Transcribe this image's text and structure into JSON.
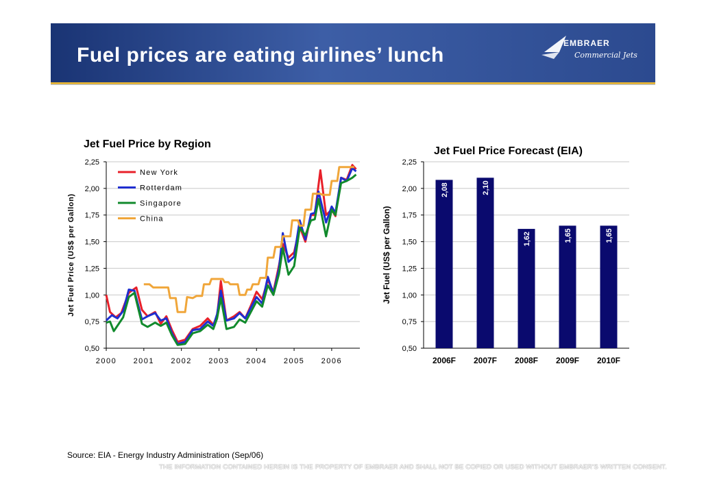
{
  "slide": {
    "title": "Fuel prices are eating airlines’ lunch",
    "logo_name": "EMBRAER",
    "logo_sub": "Commercial Jets",
    "source": "Source: EIA - Energy Industry Administration (Sep/06)",
    "disclaimer": "THE INFORMATION CONTAINED HEREIN IS THE PROPERTY OF EMBRAER AND SHALL NOT BE COPIED OR USED WITHOUT EMBRAER’S WRITTEN CONSENT.",
    "colors": {
      "banner": "#2c4a8f",
      "stripe": "#e2b33a"
    }
  },
  "chart_data": [
    {
      "type": "line",
      "title": "Jet Fuel Price by Region",
      "ylabel": "Jet Fuel Price (US$ per Gallon)",
      "xlabel": "",
      "ylim": [
        0.5,
        2.25
      ],
      "y_ticks": [
        "0,50",
        "0,75",
        "1,00",
        "1,25",
        "1,50",
        "1,75",
        "2,00",
        "2,25"
      ],
      "x_ticks": [
        "2000",
        "2001",
        "2002",
        "2003",
        "2004",
        "2005",
        "2006"
      ],
      "xlim": [
        2000,
        2006.75
      ],
      "legend_position": "top-left",
      "grid": true,
      "series": [
        {
          "name": "New York",
          "color": "#e8202a",
          "points": [
            [
              2000.0,
              1.0
            ],
            [
              2000.1,
              0.84
            ],
            [
              2000.25,
              0.79
            ],
            [
              2000.4,
              0.83
            ],
            [
              2000.6,
              1.02
            ],
            [
              2000.8,
              1.07
            ],
            [
              2000.95,
              0.86
            ],
            [
              2001.1,
              0.8
            ],
            [
              2001.3,
              0.84
            ],
            [
              2001.45,
              0.73
            ],
            [
              2001.6,
              0.8
            ],
            [
              2001.75,
              0.67
            ],
            [
              2001.9,
              0.56
            ],
            [
              2002.1,
              0.58
            ],
            [
              2002.3,
              0.68
            ],
            [
              2002.5,
              0.71
            ],
            [
              2002.7,
              0.78
            ],
            [
              2002.85,
              0.72
            ],
            [
              2002.95,
              0.8
            ],
            [
              2003.05,
              1.13
            ],
            [
              2003.2,
              0.76
            ],
            [
              2003.4,
              0.8
            ],
            [
              2003.55,
              0.84
            ],
            [
              2003.7,
              0.78
            ],
            [
              2003.85,
              0.9
            ],
            [
              2004.0,
              1.03
            ],
            [
              2004.15,
              0.96
            ],
            [
              2004.3,
              1.14
            ],
            [
              2004.45,
              1.03
            ],
            [
              2004.6,
              1.28
            ],
            [
              2004.7,
              1.48
            ],
            [
              2004.85,
              1.35
            ],
            [
              2005.0,
              1.4
            ],
            [
              2005.15,
              1.64
            ],
            [
              2005.3,
              1.5
            ],
            [
              2005.45,
              1.75
            ],
            [
              2005.55,
              1.75
            ],
            [
              2005.7,
              2.17
            ],
            [
              2005.85,
              1.75
            ],
            [
              2006.0,
              1.8
            ],
            [
              2006.1,
              1.74
            ],
            [
              2006.25,
              2.1
            ],
            [
              2006.4,
              2.08
            ],
            [
              2006.55,
              2.22
            ],
            [
              2006.65,
              2.18
            ]
          ]
        },
        {
          "name": "Rotterdam",
          "color": "#1f2ed0",
          "points": [
            [
              2000.0,
              0.76
            ],
            [
              2000.15,
              0.81
            ],
            [
              2000.3,
              0.78
            ],
            [
              2000.45,
              0.85
            ],
            [
              2000.6,
              1.05
            ],
            [
              2000.75,
              1.04
            ],
            [
              2000.95,
              0.77
            ],
            [
              2001.1,
              0.8
            ],
            [
              2001.3,
              0.83
            ],
            [
              2001.45,
              0.76
            ],
            [
              2001.6,
              0.78
            ],
            [
              2001.75,
              0.64
            ],
            [
              2001.9,
              0.54
            ],
            [
              2002.1,
              0.56
            ],
            [
              2002.3,
              0.67
            ],
            [
              2002.5,
              0.68
            ],
            [
              2002.7,
              0.75
            ],
            [
              2002.85,
              0.71
            ],
            [
              2002.95,
              0.82
            ],
            [
              2003.05,
              1.04
            ],
            [
              2003.2,
              0.76
            ],
            [
              2003.4,
              0.78
            ],
            [
              2003.55,
              0.83
            ],
            [
              2003.7,
              0.78
            ],
            [
              2003.85,
              0.88
            ],
            [
              2004.0,
              0.98
            ],
            [
              2004.15,
              0.92
            ],
            [
              2004.3,
              1.17
            ],
            [
              2004.45,
              1.01
            ],
            [
              2004.6,
              1.25
            ],
            [
              2004.7,
              1.58
            ],
            [
              2004.85,
              1.31
            ],
            [
              2005.0,
              1.36
            ],
            [
              2005.15,
              1.7
            ],
            [
              2005.3,
              1.52
            ],
            [
              2005.45,
              1.76
            ],
            [
              2005.55,
              1.77
            ],
            [
              2005.65,
              1.97
            ],
            [
              2005.85,
              1.68
            ],
            [
              2006.0,
              1.83
            ],
            [
              2006.1,
              1.77
            ],
            [
              2006.25,
              2.1
            ],
            [
              2006.4,
              2.07
            ],
            [
              2006.55,
              2.19
            ],
            [
              2006.65,
              2.16
            ]
          ]
        },
        {
          "name": "Singapore",
          "color": "#118a2c",
          "points": [
            [
              2000.0,
              0.74
            ],
            [
              2000.1,
              0.75
            ],
            [
              2000.2,
              0.66
            ],
            [
              2000.45,
              0.79
            ],
            [
              2000.6,
              0.98
            ],
            [
              2000.75,
              1.02
            ],
            [
              2000.95,
              0.73
            ],
            [
              2001.1,
              0.7
            ],
            [
              2001.3,
              0.74
            ],
            [
              2001.45,
              0.71
            ],
            [
              2001.6,
              0.74
            ],
            [
              2001.75,
              0.62
            ],
            [
              2001.9,
              0.53
            ],
            [
              2002.1,
              0.54
            ],
            [
              2002.3,
              0.64
            ],
            [
              2002.5,
              0.66
            ],
            [
              2002.7,
              0.72
            ],
            [
              2002.85,
              0.68
            ],
            [
              2002.95,
              0.78
            ],
            [
              2003.05,
              0.97
            ],
            [
              2003.2,
              0.68
            ],
            [
              2003.4,
              0.7
            ],
            [
              2003.55,
              0.77
            ],
            [
              2003.7,
              0.74
            ],
            [
              2003.85,
              0.84
            ],
            [
              2004.0,
              0.94
            ],
            [
              2004.15,
              0.89
            ],
            [
              2004.3,
              1.09
            ],
            [
              2004.45,
              1.0
            ],
            [
              2004.6,
              1.2
            ],
            [
              2004.7,
              1.44
            ],
            [
              2004.85,
              1.19
            ],
            [
              2005.0,
              1.27
            ],
            [
              2005.15,
              1.63
            ],
            [
              2005.3,
              1.56
            ],
            [
              2005.45,
              1.7
            ],
            [
              2005.55,
              1.71
            ],
            [
              2005.65,
              1.9
            ],
            [
              2005.85,
              1.55
            ],
            [
              2006.0,
              1.8
            ],
            [
              2006.1,
              1.75
            ],
            [
              2006.25,
              2.05
            ],
            [
              2006.4,
              2.07
            ],
            [
              2006.55,
              2.1
            ],
            [
              2006.65,
              2.13
            ]
          ]
        },
        {
          "name": "China",
          "color": "#f0a63a",
          "points": [
            [
              2001.0,
              1.1
            ],
            [
              2001.15,
              1.1
            ],
            [
              2001.25,
              1.07
            ],
            [
              2001.5,
              1.07
            ],
            [
              2001.65,
              1.07
            ],
            [
              2001.7,
              0.97
            ],
            [
              2001.85,
              0.97
            ],
            [
              2001.9,
              0.84
            ],
            [
              2002.1,
              0.84
            ],
            [
              2002.15,
              0.98
            ],
            [
              2002.3,
              0.97
            ],
            [
              2002.4,
              0.99
            ],
            [
              2002.55,
              0.99
            ],
            [
              2002.6,
              1.1
            ],
            [
              2002.75,
              1.1
            ],
            [
              2002.8,
              1.15
            ],
            [
              2003.0,
              1.15
            ],
            [
              2003.1,
              1.15
            ],
            [
              2003.15,
              1.12
            ],
            [
              2003.25,
              1.12
            ],
            [
              2003.3,
              1.1
            ],
            [
              2003.5,
              1.1
            ],
            [
              2003.55,
              1.0
            ],
            [
              2003.7,
              1.0
            ],
            [
              2003.75,
              1.05
            ],
            [
              2003.85,
              1.05
            ],
            [
              2003.9,
              1.1
            ],
            [
              2004.0,
              1.1
            ],
            [
              2004.05,
              1.1
            ],
            [
              2004.1,
              1.16
            ],
            [
              2004.25,
              1.16
            ],
            [
              2004.3,
              1.35
            ],
            [
              2004.45,
              1.35
            ],
            [
              2004.5,
              1.45
            ],
            [
              2004.65,
              1.45
            ],
            [
              2004.7,
              1.55
            ],
            [
              2004.9,
              1.55
            ],
            [
              2004.95,
              1.7
            ],
            [
              2005.1,
              1.7
            ],
            [
              2005.15,
              1.65
            ],
            [
              2005.25,
              1.65
            ],
            [
              2005.3,
              1.8
            ],
            [
              2005.45,
              1.8
            ],
            [
              2005.5,
              1.95
            ],
            [
              2005.7,
              1.95
            ],
            [
              2005.75,
              1.94
            ],
            [
              2005.95,
              1.94
            ],
            [
              2006.0,
              2.07
            ],
            [
              2006.15,
              2.07
            ],
            [
              2006.2,
              2.2
            ],
            [
              2006.6,
              2.2
            ]
          ]
        }
      ]
    },
    {
      "type": "bar",
      "title": "Jet Fuel Price Forecast (EIA)",
      "ylabel": "Jet Fuel (US$ per Gallon)",
      "xlabel": "",
      "ylim": [
        0.5,
        2.25
      ],
      "y_ticks": [
        "0,50",
        "0,75",
        "1,00",
        "1,25",
        "1,50",
        "1,75",
        "2,00",
        "2,25"
      ],
      "categories": [
        "2006F",
        "2007F",
        "2008F",
        "2009F",
        "2010F"
      ],
      "values": [
        2.08,
        2.1,
        1.62,
        1.65,
        1.65
      ],
      "labels": [
        "2,08",
        "2,10",
        "1,62",
        "1,65",
        "1,65"
      ],
      "bar_color": "#0a0a6e",
      "grid": true
    }
  ]
}
